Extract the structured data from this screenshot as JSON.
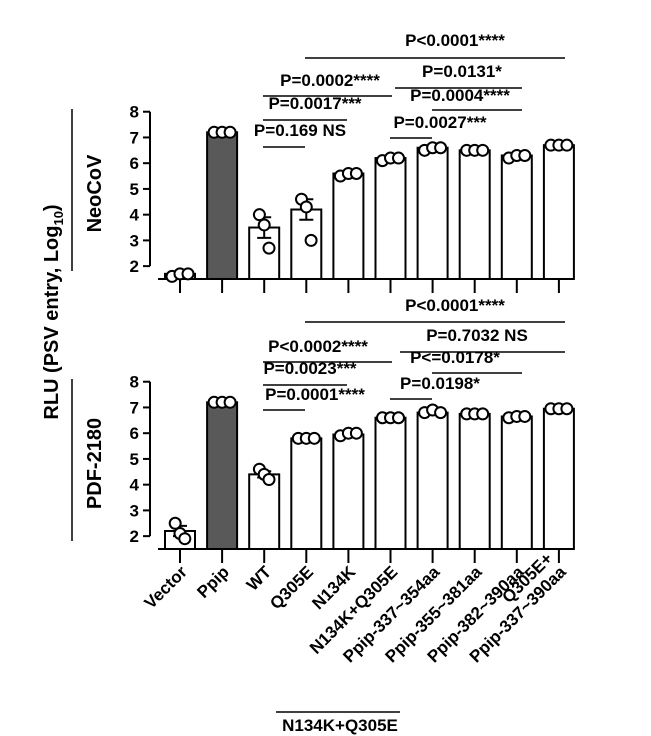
{
  "figure": {
    "y_label": [
      "RLU (PSV entry, Log",
      "10",
      ")"
    ],
    "group_label": "N134K+Q305E"
  },
  "chart_data": [
    {
      "type": "bar",
      "panel_label": "NeoCoV",
      "categories": [
        "Vector",
        "Ppip",
        "WT",
        "Q305E",
        "N134K",
        "N134K+Q305E",
        "Ppip-337~354aa",
        "Ppip-355~381aa",
        "Ppip-382~390aa",
        "Q305E+\nPpip-337~390aa"
      ],
      "values": [
        1.7,
        7.2,
        3.5,
        4.2,
        5.6,
        6.2,
        6.6,
        6.5,
        6.3,
        6.7
      ],
      "errors": [
        0.05,
        0.02,
        0.4,
        0.4,
        0.05,
        0.05,
        0.05,
        0.03,
        0.03,
        0.03
      ],
      "points": [
        [
          1.6,
          1.7,
          1.7
        ],
        [
          7.2,
          7.2,
          7.2
        ],
        [
          4.0,
          3.6,
          2.7
        ],
        [
          4.6,
          4.3,
          3.0
        ],
        [
          5.5,
          5.6,
          5.6
        ],
        [
          6.1,
          6.2,
          6.2
        ],
        [
          6.5,
          6.6,
          6.6
        ],
        [
          6.5,
          6.5,
          6.5
        ],
        [
          6.2,
          6.3,
          6.3
        ],
        [
          6.7,
          6.7,
          6.7
        ]
      ],
      "colors": [
        "#ffffff",
        "#595959",
        "#ffffff",
        "#ffffff",
        "#ffffff",
        "#ffffff",
        "#ffffff",
        "#ffffff",
        "#ffffff",
        "#ffffff"
      ],
      "ylim": [
        1.5,
        8.3
      ],
      "yticks": [
        2,
        3,
        4,
        5,
        6,
        7,
        8
      ],
      "annotations": [
        "P<0.0001****",
        "P=0.0002****",
        "P=0.0131*",
        "P=0.0017***",
        "P=0.0004****",
        "P=0.169 NS",
        "P=0.0027***"
      ]
    },
    {
      "type": "bar",
      "panel_label": "PDF-2180",
      "categories": [
        "Vector",
        "Ppip",
        "WT",
        "Q305E",
        "N134K",
        "N134K+Q305E",
        "Ppip-337~354aa",
        "Ppip-355~381aa",
        "Ppip-382~390aa",
        "Q305E+\nPpip-337~390aa"
      ],
      "values": [
        2.2,
        7.2,
        4.4,
        5.8,
        5.95,
        6.6,
        6.8,
        6.75,
        6.65,
        6.95
      ],
      "errors": [
        0.2,
        0.02,
        0.12,
        0.03,
        0.05,
        0.03,
        0.05,
        0.03,
        0.03,
        0.03
      ],
      "points": [
        [
          2.5,
          2.1,
          1.9
        ],
        [
          7.2,
          7.2,
          7.2
        ],
        [
          4.6,
          4.4,
          4.2
        ],
        [
          5.8,
          5.8,
          5.8
        ],
        [
          5.9,
          6.0,
          6.0
        ],
        [
          6.6,
          6.6,
          6.6
        ],
        [
          6.8,
          6.9,
          6.8
        ],
        [
          6.75,
          6.75,
          6.75
        ],
        [
          6.6,
          6.65,
          6.65
        ],
        [
          6.95,
          6.95,
          6.95
        ]
      ],
      "colors": [
        "#ffffff",
        "#595959",
        "#ffffff",
        "#ffffff",
        "#ffffff",
        "#ffffff",
        "#ffffff",
        "#ffffff",
        "#ffffff",
        "#ffffff"
      ],
      "ylim": [
        1.5,
        8.3
      ],
      "yticks": [
        2,
        3,
        4,
        5,
        6,
        7,
        8
      ],
      "annotations": [
        "P<0.0001****",
        "P<0.0002****",
        "P=0.7032 NS",
        "P=0.0023***",
        "P<=0.0178*",
        "P=0.0001****",
        "P=0.0198*"
      ]
    }
  ]
}
